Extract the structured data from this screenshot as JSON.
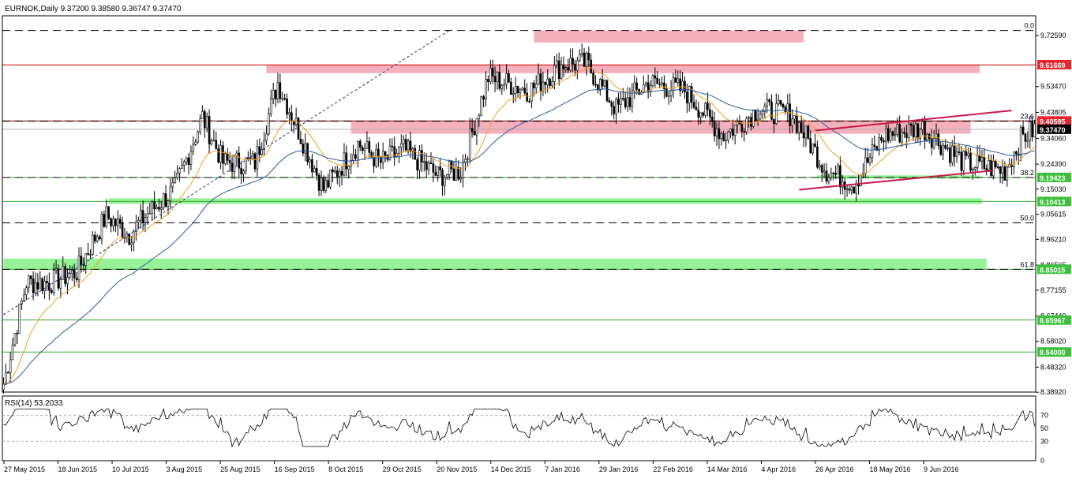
{
  "header": {
    "title": "EURNOK,Daily  9.37200 9.38580 9.36747 9.37470"
  },
  "rsi_label": "RSI(14) 53.2033",
  "colors": {
    "candle": "#000000",
    "ma_fast": "#f0a020",
    "ma_slow": "#2a5aa8",
    "resistance_zone": "#f4a7b6",
    "support_zone": "#8cf08c",
    "resistance_line": "#cc0000",
    "support_line": "#33aa33",
    "trendline": "#c8184a",
    "current_price_bg": "#000000",
    "resistance_label_bg": "#e8242c",
    "support_label_bg": "#3cc03c"
  },
  "chart_data": {
    "type": "candlestick",
    "symbol": "EURNOK",
    "timeframe": "Daily",
    "ohlc_last": {
      "open": 9.372,
      "high": 9.3858,
      "low": 9.36747,
      "close": 9.3747
    },
    "ylim": [
      8.3898,
      9.8
    ],
    "y_ticks": [
      "9.72590",
      "9.53470",
      "9.43805",
      "9.34060",
      "9.24390",
      "9.15030",
      "9.05615",
      "8.96210",
      "8.86565",
      "8.77155",
      "8.67440",
      "8.58020",
      "8.48320",
      "8.38920"
    ],
    "x_tick_labels": [
      "27 May 2015",
      "18 Jun 2015",
      "10 Jul 2015",
      "3 Aug 2015",
      "25 Aug 2015",
      "16 Sep 2015",
      "8 Oct 2015",
      "29 Oct 2015",
      "20 Nov 2015",
      "14 Dec 2015",
      "7 Jan 2016",
      "29 Jan 2016",
      "22 Feb 2016",
      "14 Mar 2016",
      "4 Apr 2016",
      "26 Apr 2016",
      "18 May 2016",
      "9 Jun 2016"
    ],
    "price_labels": [
      {
        "value": "9.61669",
        "kind": "resistance"
      },
      {
        "value": "9.40595",
        "kind": "resistance"
      },
      {
        "value": "9.37470",
        "kind": "current"
      },
      {
        "value": "9.19423",
        "kind": "support"
      },
      {
        "value": "9.10413",
        "kind": "support"
      },
      {
        "value": "8.85015",
        "kind": "support"
      },
      {
        "value": "8.65967",
        "kind": "support"
      },
      {
        "value": "8.54000",
        "kind": "support"
      }
    ],
    "fibonacci": [
      {
        "label": "0.0",
        "value": 9.745
      },
      {
        "label": "23.6",
        "value": 9.405
      },
      {
        "label": "38.2",
        "value": 9.194
      },
      {
        "label": "50.0",
        "value": 9.024
      },
      {
        "label": "61.8",
        "value": 8.85
      }
    ],
    "zones": [
      {
        "kind": "resistance",
        "from_bar": 232,
        "to_bar": 350,
        "low": 9.7,
        "high": 9.745
      },
      {
        "kind": "resistance",
        "from_bar": 115,
        "to_bar": 427,
        "low": 9.585,
        "high": 9.615
      },
      {
        "kind": "resistance",
        "from_bar": 152,
        "to_bar": 423,
        "low": 9.358,
        "high": 9.405
      },
      {
        "kind": "support",
        "from_bar": 356,
        "to_bar": 427,
        "low": 9.19,
        "high": 9.202
      },
      {
        "kind": "support",
        "from_bar": 46,
        "to_bar": 428,
        "low": 9.095,
        "high": 9.116
      },
      {
        "kind": "support",
        "from_bar": 0,
        "to_bar": 430,
        "low": 8.85,
        "high": 8.89
      }
    ],
    "hlines": [
      {
        "value": 9.616,
        "style": "solid-red"
      },
      {
        "value": 9.406,
        "style": "solid-darkred"
      },
      {
        "value": 9.194,
        "style": "solid-green"
      },
      {
        "value": 9.104,
        "style": "solid-green"
      },
      {
        "value": 8.85,
        "style": "solid-green"
      },
      {
        "value": 8.66,
        "style": "solid-green"
      },
      {
        "value": 8.54,
        "style": "solid-green"
      }
    ],
    "trendlines": [
      {
        "from": [
          355,
          9.37
        ],
        "to": [
          441,
          9.445
        ],
        "style": "solid"
      },
      {
        "from": [
          348,
          9.148
        ],
        "to": [
          433,
          9.22
        ],
        "style": "solid"
      },
      {
        "from": [
          0,
          8.68
        ],
        "to": [
          195,
          9.745
        ],
        "style": "dotted"
      }
    ],
    "rsi": {
      "period": 14,
      "value": 53.2033,
      "levels": [
        70,
        30
      ],
      "ylim": [
        0,
        100
      ],
      "ticks": [
        "70",
        "50",
        "30",
        "0"
      ]
    }
  }
}
